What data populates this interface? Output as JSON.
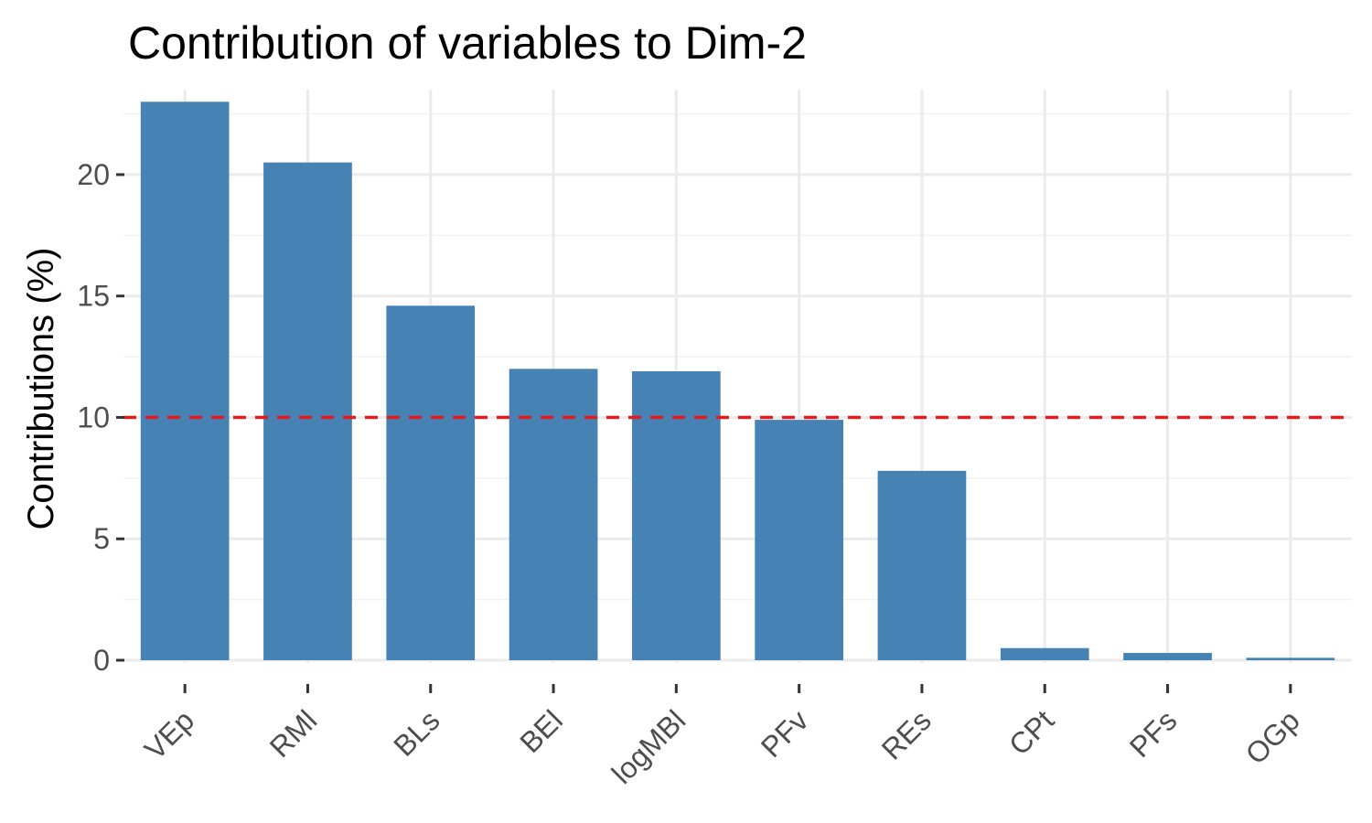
{
  "chart_data": {
    "type": "bar",
    "title": "Contribution of variables to Dim-2",
    "xlabel": "",
    "ylabel": "Contributions (%)",
    "categories": [
      "VEp",
      "RMl",
      "BLs",
      "BEl",
      "logMBl",
      "PFv",
      "REs",
      "CPt",
      "PFs",
      "OGp"
    ],
    "values": [
      23.0,
      20.5,
      14.6,
      12.0,
      11.9,
      9.9,
      7.8,
      0.5,
      0.3,
      0.1
    ],
    "ylim": [
      0,
      23.5
    ],
    "yticks": [
      0,
      5,
      10,
      15,
      20
    ],
    "reference_line": {
      "value": 10,
      "style": "dashed",
      "color": "#e41a1c"
    },
    "bar_color": "#4682b4",
    "grid": true,
    "legend": "none"
  }
}
